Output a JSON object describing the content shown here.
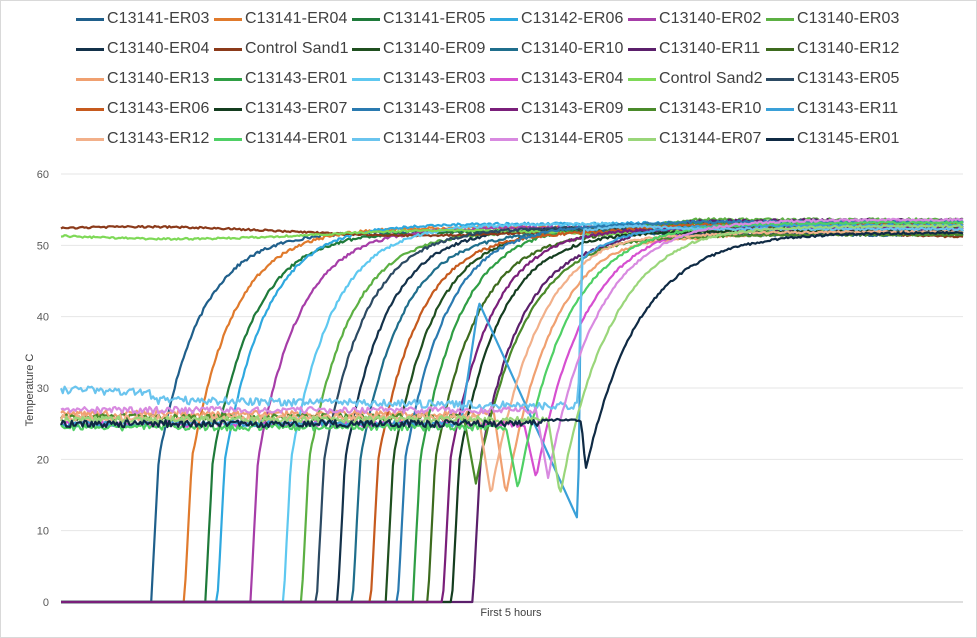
{
  "chart_data": {
    "type": "line",
    "title": "",
    "xlabel": "First 5 hours",
    "ylabel": "Temperature C",
    "ylim": [
      0,
      60
    ],
    "yticks": [
      0,
      10,
      20,
      30,
      40,
      50,
      60
    ],
    "xlim": [
      0,
      300
    ],
    "x_unit": "minutes",
    "grid": "horizontal",
    "legend_position": "top",
    "series": [
      {
        "name": "C13141-ER03",
        "color": "#1f5f8b",
        "kind": "ramp",
        "t0": 30,
        "plateau": 52
      },
      {
        "name": "C13141-ER04",
        "color": "#e07a2c",
        "kind": "ramp",
        "t0": 41,
        "plateau": 52.5
      },
      {
        "name": "C13141-ER05",
        "color": "#1e7a3a",
        "kind": "ramp",
        "t0": 48,
        "plateau": 52
      },
      {
        "name": "C13142-ER06",
        "color": "#2ea8df",
        "kind": "ramp",
        "t0": 52,
        "plateau": 53
      },
      {
        "name": "C13140-ER02",
        "color": "#a63da8",
        "kind": "ramp",
        "t0": 63,
        "plateau": 52.5
      },
      {
        "name": "C13140-ER03",
        "color": "#5cb043",
        "kind": "ramp",
        "t0": 80,
        "plateau": 52
      },
      {
        "name": "C13140-ER04",
        "color": "#13314a",
        "kind": "ramp",
        "t0": 92,
        "plateau": 52.5
      },
      {
        "name": "Control Sand1",
        "color": "#8b3a1a",
        "kind": "control",
        "t0": 0,
        "plateau": 52
      },
      {
        "name": "C13140-ER09",
        "color": "#1f4f1f",
        "kind": "ramp",
        "t0": 108,
        "plateau": 52.5
      },
      {
        "name": "C13140-ER10",
        "color": "#1f6e8c",
        "kind": "ramp",
        "t0": 97,
        "plateau": 52
      },
      {
        "name": "C13140-ER11",
        "color": "#5b1f6b",
        "kind": "ramp",
        "t0": 137,
        "plateau": 51.5
      },
      {
        "name": "C13140-ER12",
        "color": "#3d6b1e",
        "kind": "ramp",
        "t0": 122,
        "plateau": 52
      },
      {
        "name": "C13140-ER13",
        "color": "#f0a070",
        "kind": "dip",
        "t0": 148,
        "plateau": 53
      },
      {
        "name": "C13143-ER01",
        "color": "#2f9e44",
        "kind": "ramp",
        "t0": 117,
        "plateau": 53
      },
      {
        "name": "C13143-ER03",
        "color": "#5ec8f0",
        "kind": "ramp",
        "t0": 74,
        "plateau": 53
      },
      {
        "name": "C13143-ER04",
        "color": "#d64fd0",
        "kind": "dip",
        "t0": 158,
        "plateau": 53
      },
      {
        "name": "Control Sand2",
        "color": "#7ed957",
        "kind": "control",
        "t0": 0,
        "plateau": 51.5
      },
      {
        "name": "C13143-ER05",
        "color": "#2c4a63",
        "kind": "ramp",
        "t0": 85,
        "plateau": 52.5
      },
      {
        "name": "C13143-ER06",
        "color": "#c65a1e",
        "kind": "ramp",
        "t0": 103,
        "plateau": 52
      },
      {
        "name": "C13143-ER07",
        "color": "#143d1f",
        "kind": "ramp",
        "t0": 130,
        "plateau": 52
      },
      {
        "name": "C13143-ER08",
        "color": "#2a7ab0",
        "kind": "ramp",
        "t0": 112,
        "plateau": 53
      },
      {
        "name": "C13143-ER09",
        "color": "#7a1f7a",
        "kind": "ramp",
        "t0": 127,
        "plateau": 52.5
      },
      {
        "name": "C13143-ER10",
        "color": "#4a8a2a",
        "kind": "dip",
        "t0": 138,
        "plateau": 52
      },
      {
        "name": "C13143-ER11",
        "color": "#3aa0d8",
        "kind": "spike",
        "t0": 139,
        "plateau": 52.5
      },
      {
        "name": "C13143-ER12",
        "color": "#f2b08a",
        "kind": "dip",
        "t0": 143,
        "plateau": 53
      },
      {
        "name": "C13144-ER01",
        "color": "#4fd065",
        "kind": "dip",
        "t0": 152,
        "plateau": 53
      },
      {
        "name": "C13144-ER03",
        "color": "#6ac4ee",
        "kind": "warm",
        "t0": 172,
        "plateau": 53
      },
      {
        "name": "C13144-ER05",
        "color": "#d88ae0",
        "kind": "dip",
        "t0": 162,
        "plateau": 53
      },
      {
        "name": "C13144-ER07",
        "color": "#9ad67a",
        "kind": "dip",
        "t0": 166,
        "plateau": 51.5
      },
      {
        "name": "C13145-ER01",
        "color": "#0f2a44",
        "kind": "late",
        "t0": 173,
        "plateau": 52
      }
    ]
  }
}
